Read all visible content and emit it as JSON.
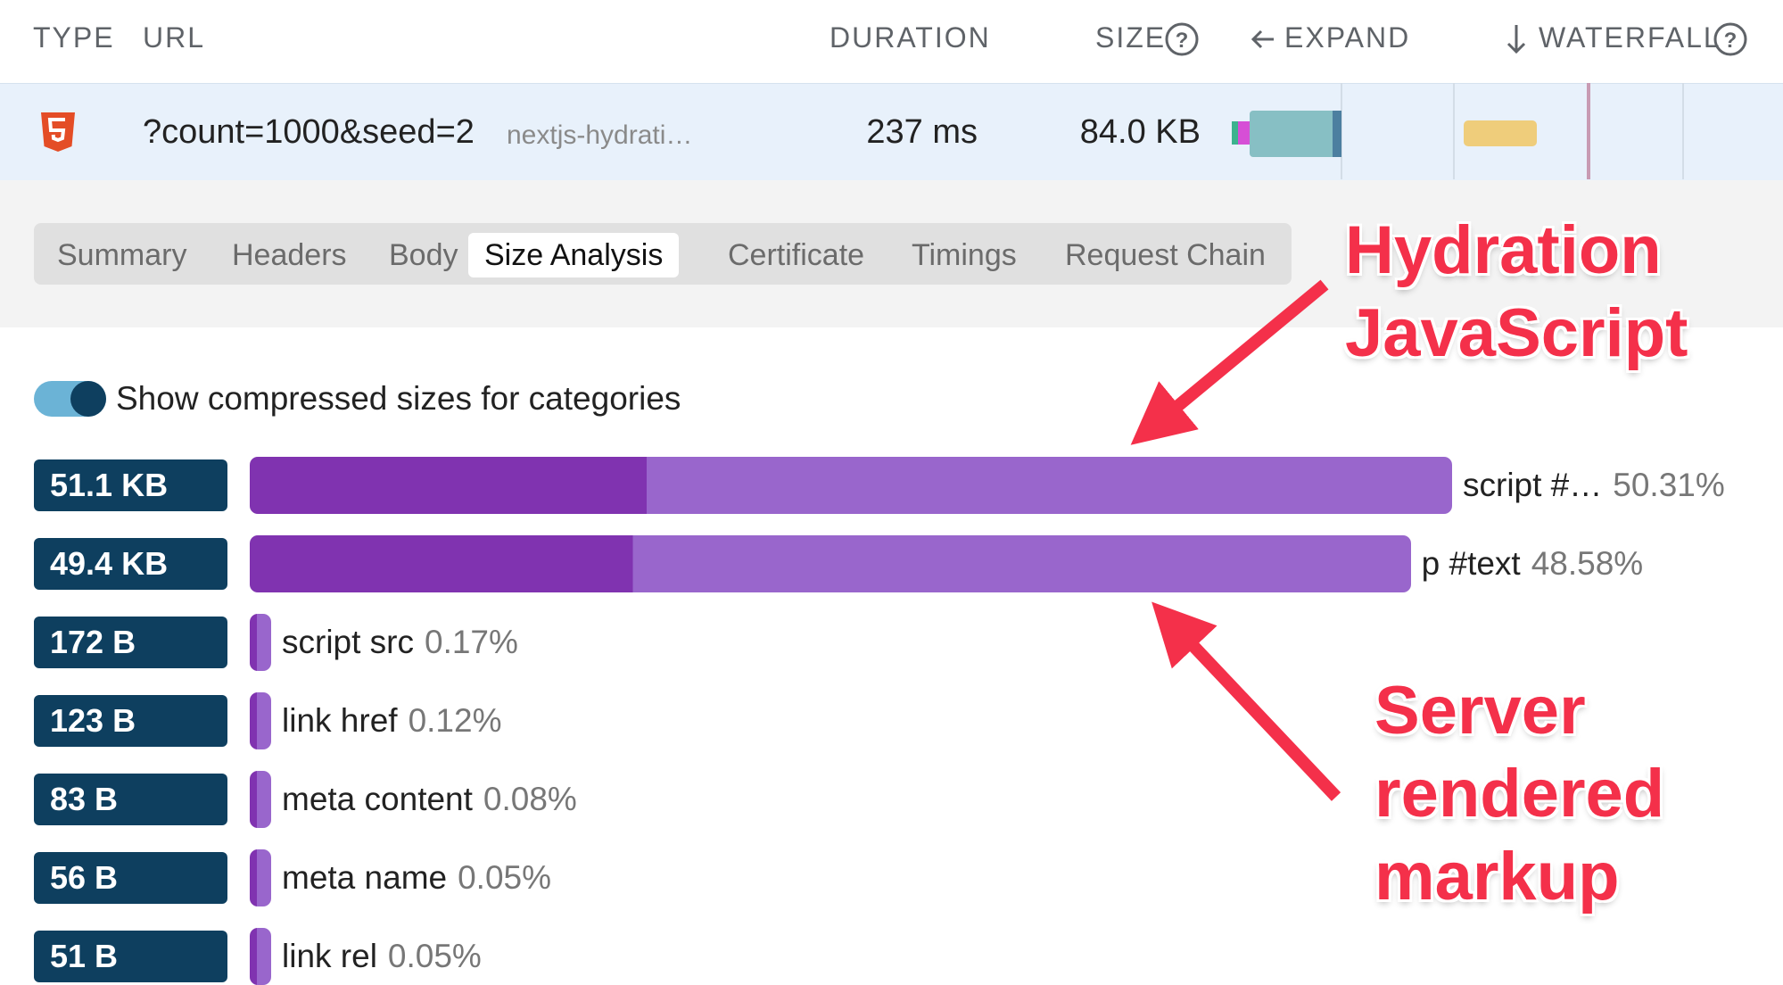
{
  "columns": {
    "type": "TYPE",
    "url": "URL",
    "duration": "DURATION",
    "size": "SIZE",
    "expand": "EXPAND",
    "waterfall": "WATERFALL"
  },
  "request": {
    "url": "?count=1000&seed=2",
    "host": "nextjs-hydrati…",
    "duration": "237 ms",
    "size": "84.0 KB"
  },
  "tabs": [
    "Summary",
    "Headers",
    "Body",
    "Size Analysis",
    "Certificate",
    "Timings",
    "Request Chain"
  ],
  "active_tab": "Size Analysis",
  "toggle_label": "Show compressed sizes for categories",
  "chart_data": {
    "type": "bar",
    "orientation": "horizontal",
    "categories": [
      "script #…",
      "p #text",
      "script src",
      "link href",
      "meta content",
      "meta name",
      "link rel"
    ],
    "size_labels": [
      "51.1 KB",
      "49.4 KB",
      "172 B",
      "123 B",
      "83 B",
      "56 B",
      "51 B"
    ],
    "values": [
      50.31,
      48.58,
      0.17,
      0.12,
      0.08,
      0.05,
      0.05
    ],
    "value_labels": [
      "50.31%",
      "48.58%",
      "0.17%",
      "0.12%",
      "0.08%",
      "0.05%",
      "0.05%"
    ],
    "color": "#9966cc",
    "compressed_color": "#8033b0"
  },
  "annotations": [
    [
      "Hydration",
      "JavaScript"
    ],
    [
      "Server",
      "rendered",
      "markup"
    ]
  ]
}
